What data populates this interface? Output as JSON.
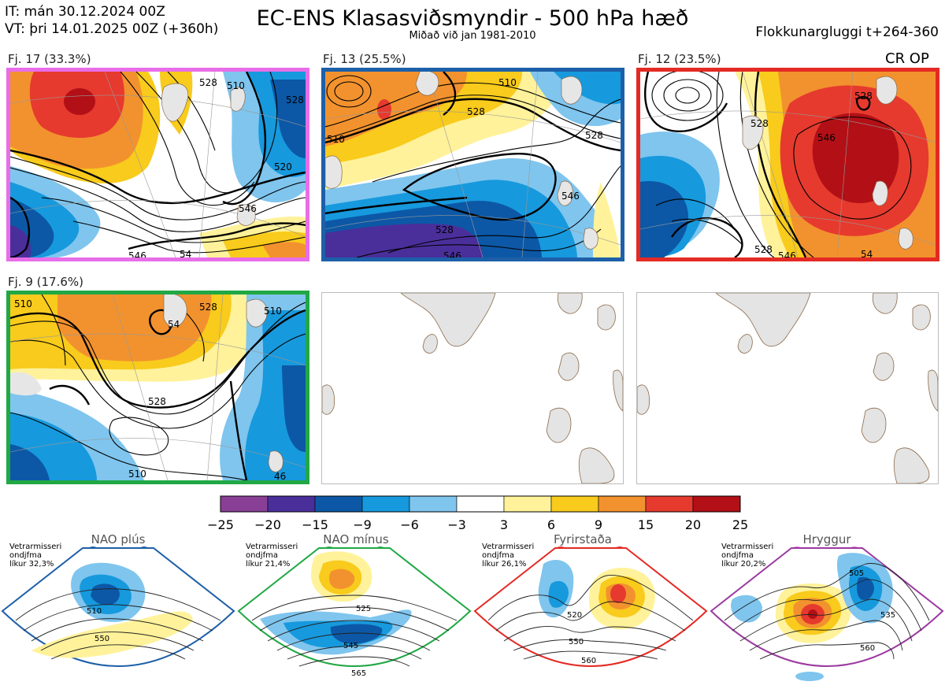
{
  "header": {
    "init_time": "IT: mán 30.12.2024 00Z",
    "valid_time": "VT: þri 14.01.2025 00Z  (+360h)",
    "title": "EC-ENS Klasasviðsmyndir - 500 hPa hæð",
    "subtitle": "Miðað við jan 1981-2010",
    "window": "Flokkunargluggi t+264-360",
    "cr_op": "CR OP"
  },
  "clusters": [
    {
      "label": "Fj. 17 (33.3%)",
      "border_color": "#e86de8"
    },
    {
      "label": "Fj. 13 (25.5%)",
      "border_color": "#1d5fa8"
    },
    {
      "label": "Fj. 12 (23.5%)",
      "border_color": "#e42a24"
    },
    {
      "label": "Fj. 9 (17.6%)",
      "border_color": "#21a845"
    }
  ],
  "contour_labels": {
    "c1": [
      "528",
      "510",
      "528",
      "520",
      "546",
      "546",
      "54"
    ],
    "c2": [
      "510",
      "528",
      "510",
      "528",
      "546",
      "528",
      "546"
    ],
    "c3": [
      "528",
      "528",
      "546",
      "528",
      "546",
      "54"
    ],
    "c4": [
      "510",
      "54",
      "528",
      "528",
      "510",
      "510",
      "46"
    ]
  },
  "colorbar": {
    "ticks": [
      "−25",
      "−20",
      "−15",
      "−9",
      "−6",
      "−3",
      "3",
      "6",
      "9",
      "15",
      "20",
      "25"
    ],
    "colors": [
      "#8a3f97",
      "#4a2f9b",
      "#0c58a6",
      "#1799dd",
      "#7fc5ee",
      "#ffffff",
      "#fff29a",
      "#f8cb1c",
      "#f2922e",
      "#e63a2e",
      "#b21016"
    ]
  },
  "regimes": [
    {
      "title": "NAO plús",
      "note_lines": [
        "Vetrarmisseri",
        "ondjfma",
        "líkur 32,3%"
      ],
      "color": "#1d5fa8",
      "contour_labels": [
        "510",
        "550"
      ]
    },
    {
      "title": "NAO mínus",
      "note_lines": [
        "Vetrarmisseri",
        "ondjfma",
        "líkur 21,4%"
      ],
      "color": "#21a845",
      "contour_labels": [
        "525",
        "545",
        "565"
      ]
    },
    {
      "title": "Fyrirstaða",
      "note_lines": [
        "Vetrarmisseri",
        "ondjfma",
        "líkur 26,1%"
      ],
      "color": "#e42a24",
      "contour_labels": [
        "520",
        "550",
        "560"
      ]
    },
    {
      "title": "Hryggur",
      "note_lines": [
        "Vetrarmisseri",
        "ondjfma",
        "líkur 20,2%"
      ],
      "color": "#9b3aa0",
      "contour_labels": [
        "505",
        "535",
        "560"
      ]
    }
  ]
}
